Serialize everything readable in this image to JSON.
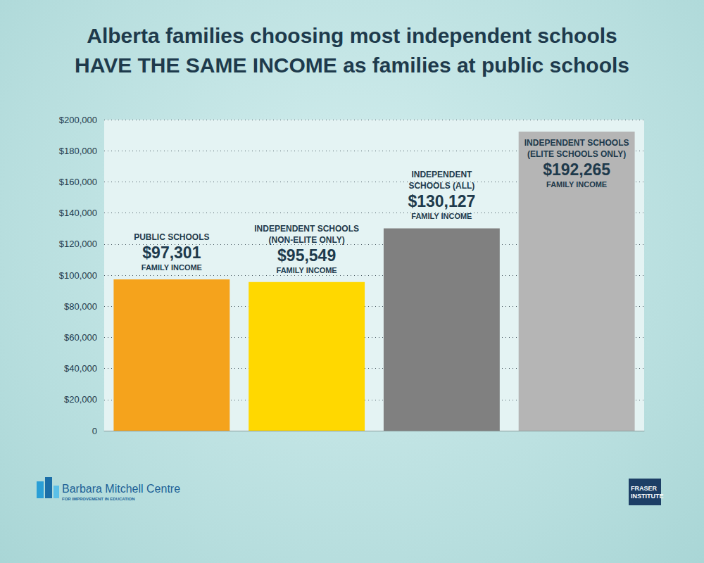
{
  "chart_data": {
    "type": "bar",
    "title": "Alberta families choosing most independent schools\nHAVE THE SAME INCOME as families at public schools",
    "categories": [
      "PUBLIC SCHOOLS",
      "INDEPENDENT SCHOOLS\n(NON-ELITE ONLY)",
      "INDEPENDENT\nSCHOOLS (ALL)",
      "INDEPENDENT SCHOOLS\n(ELITE SCHOOLS ONLY)"
    ],
    "values": [
      97301,
      95549,
      130127,
      192265
    ],
    "value_labels": [
      "$97,301",
      "$95,549",
      "$130,127",
      "$192,265"
    ],
    "colors": [
      "#f5a31c",
      "#ffd800",
      "#808080",
      "#b5b5b5"
    ],
    "ylim": [
      0,
      200000
    ],
    "yticks": [
      0,
      {
        "value": 20000,
        "label": "$20,000"
      },
      {
        "value": 40000,
        "label": "$40,000"
      },
      {
        "value": 60000,
        "label": "$60,000"
      },
      {
        "value": 80000,
        "label": "$80,000"
      },
      {
        "value": 100000,
        "label": "$100,000"
      },
      {
        "value": 120000,
        "label": "$120,000"
      },
      {
        "value": 140000,
        "label": "$140,000"
      },
      {
        "value": 160000,
        "label": "$160,000"
      },
      {
        "value": 180000,
        "label": "$180,000"
      },
      {
        "value": 200000,
        "label": "$200,000"
      }
    ],
    "grid": true,
    "data_labels": true,
    "tick_labels": "y",
    "annotations": {
      "value_caption": "FAMILY INCOME",
      "logo_left": "Barbara Mitchell Centre",
      "logo_left_sub": "FOR IMPROVEMENT IN EDUCATION",
      "logo_right": "FRASER\nINSTITUTE"
    }
  }
}
